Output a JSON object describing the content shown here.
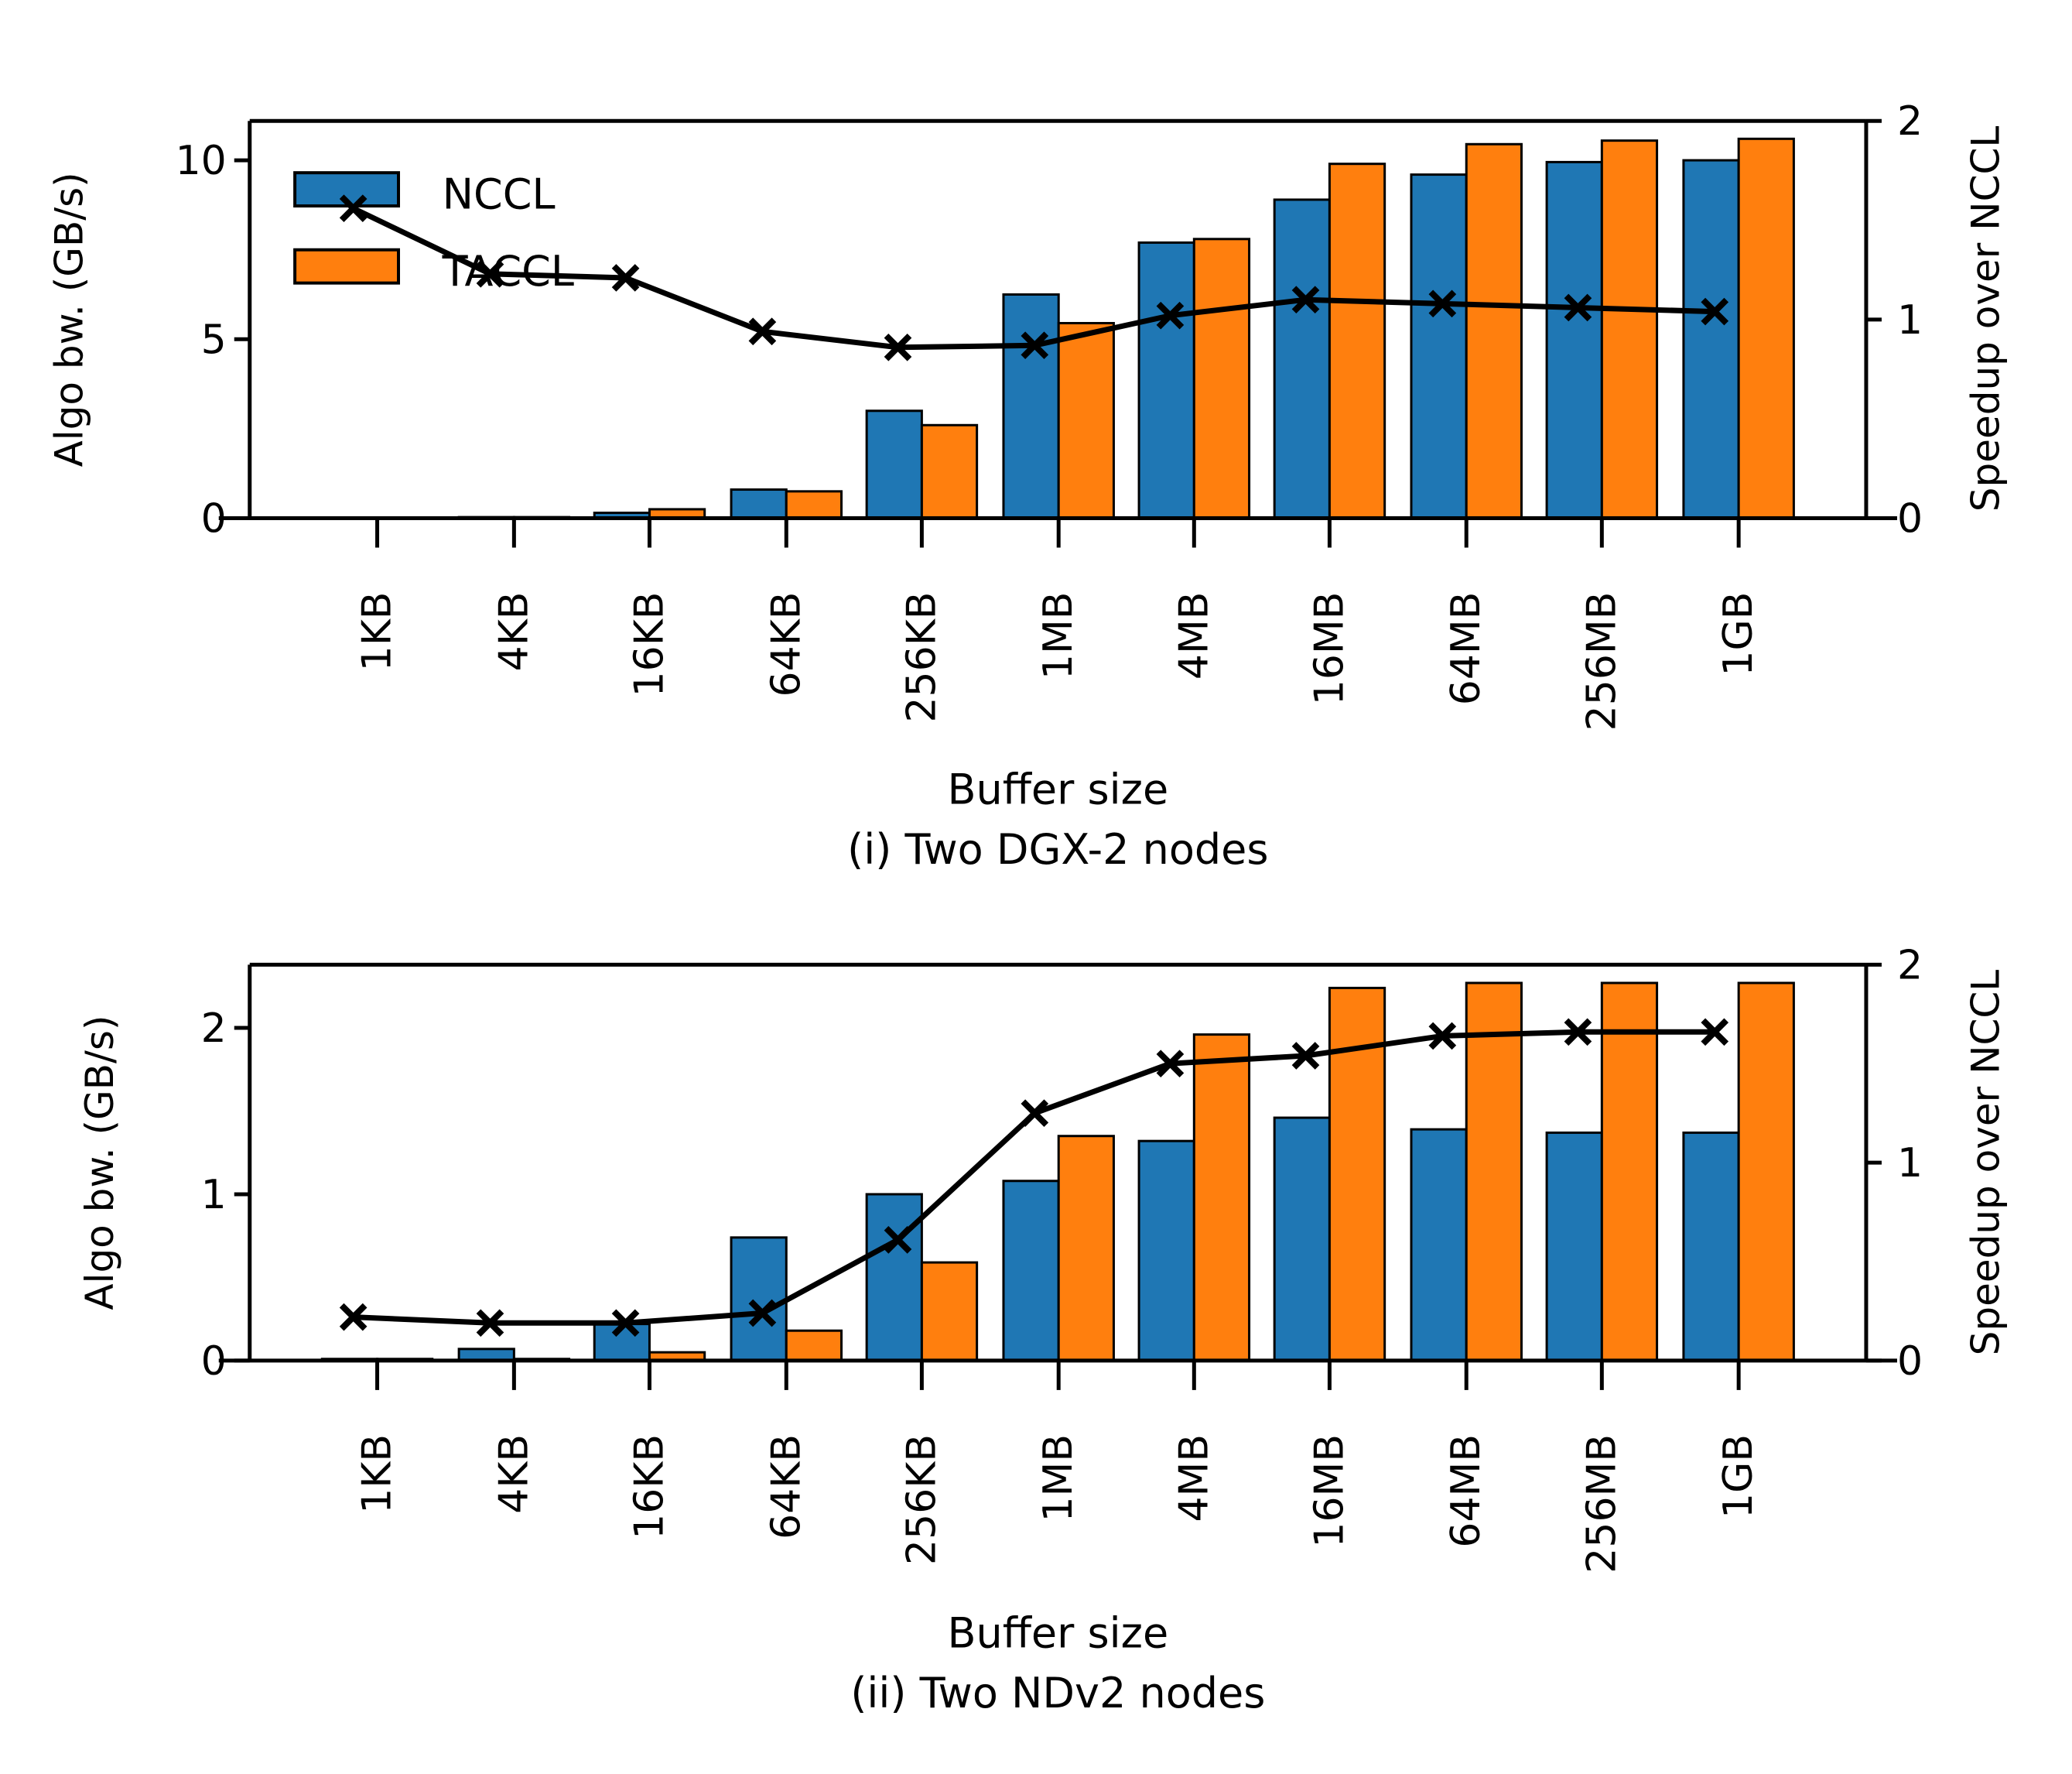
{
  "chart_data": [
    {
      "type": "bar",
      "title": "(i) Two DGX-2 nodes",
      "xlabel": "Buffer size",
      "ylabel": "Algo bw. (GB/s)",
      "y2label": "Speedup over NCCL",
      "categories": [
        "1KB",
        "4KB",
        "16KB",
        "64KB",
        "256KB",
        "1MB",
        "4MB",
        "16MB",
        "64MB",
        "256MB",
        "1GB"
      ],
      "ylim": [
        0,
        11.1
      ],
      "yticks": [
        0,
        5,
        10
      ],
      "y2lim": [
        0,
        2
      ],
      "y2ticks": [
        0,
        1,
        2
      ],
      "legend": {
        "placement": "top-left",
        "entries": [
          "NCCL",
          "TACCL"
        ]
      },
      "series": [
        {
          "name": "NCCL",
          "kind": "bar",
          "color": "#1f77b4",
          "values": [
            0.01,
            0.03,
            0.15,
            0.8,
            3.0,
            6.25,
            7.7,
            8.9,
            9.6,
            9.95,
            10.0
          ]
        },
        {
          "name": "TACCL",
          "kind": "bar",
          "color": "#ff7f0e",
          "values": [
            0.01,
            0.03,
            0.25,
            0.75,
            2.6,
            5.45,
            7.8,
            9.9,
            10.45,
            10.55,
            10.6
          ]
        },
        {
          "name": "Speedup",
          "kind": "line",
          "axis": "right",
          "color": "#000000",
          "marker": "x",
          "values": [
            1.56,
            1.23,
            1.21,
            0.94,
            0.86,
            0.87,
            1.02,
            1.1,
            1.08,
            1.06,
            1.04
          ]
        }
      ]
    },
    {
      "type": "bar",
      "title": "(ii) Two NDv2 nodes",
      "xlabel": "Buffer size",
      "ylabel": "Algo bw. (GB/s)",
      "y2label": "Speedup over NCCL",
      "categories": [
        "1KB",
        "4KB",
        "16KB",
        "64KB",
        "256KB",
        "1MB",
        "4MB",
        "16MB",
        "64MB",
        "256MB",
        "1GB"
      ],
      "ylim": [
        0,
        2.38
      ],
      "yticks": [
        0,
        1,
        2
      ],
      "y2lim": [
        0,
        2
      ],
      "y2ticks": [
        0,
        1,
        2
      ],
      "series": [
        {
          "name": "NCCL",
          "kind": "bar",
          "color": "#1f77b4",
          "values": [
            0.01,
            0.07,
            0.22,
            0.74,
            1.0,
            1.08,
            1.32,
            1.46,
            1.39,
            1.37,
            1.37
          ]
        },
        {
          "name": "TACCL",
          "kind": "bar",
          "color": "#ff7f0e",
          "values": [
            0.01,
            0.01,
            0.05,
            0.18,
            0.59,
            1.35,
            1.96,
            2.24,
            2.27,
            2.27,
            2.27
          ]
        },
        {
          "name": "Speedup",
          "kind": "line",
          "axis": "right",
          "color": "#000000",
          "marker": "x",
          "values": [
            0.22,
            0.19,
            0.19,
            0.24,
            0.61,
            1.25,
            1.5,
            1.54,
            1.64,
            1.66,
            1.66
          ]
        }
      ]
    }
  ]
}
